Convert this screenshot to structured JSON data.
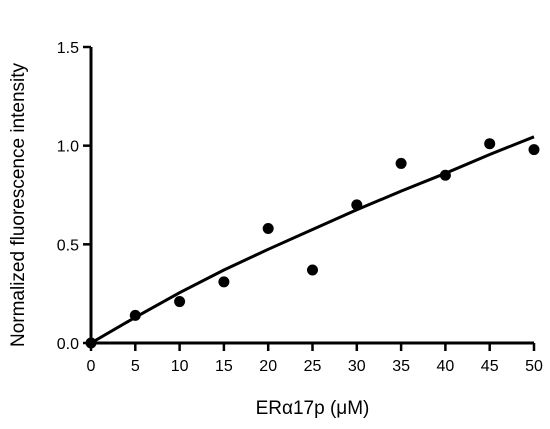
{
  "chart_data": {
    "type": "scatter",
    "xlabel": "ERα17p (μM)",
    "ylabel": "Normalized fluorescence intensity",
    "xlim": [
      0,
      50
    ],
    "ylim": [
      0,
      1.5
    ],
    "x_ticks": [
      0,
      5,
      10,
      15,
      20,
      25,
      30,
      35,
      40,
      45,
      50
    ],
    "x_tick_labels": [
      "0",
      "5",
      "10",
      "15",
      "20",
      "25",
      "30",
      "35",
      "40",
      "45",
      "50"
    ],
    "y_ticks": [
      0,
      0.5,
      1.0,
      1.5
    ],
    "y_tick_labels": [
      "0.0",
      "0.5",
      "1.0",
      "1.5"
    ],
    "grid": false,
    "points": [
      {
        "x": 0,
        "y": 0.0
      },
      {
        "x": 5,
        "y": 0.14
      },
      {
        "x": 10,
        "y": 0.21
      },
      {
        "x": 15,
        "y": 0.31
      },
      {
        "x": 20,
        "y": 0.58
      },
      {
        "x": 25,
        "y": 0.37
      },
      {
        "x": 30,
        "y": 0.7
      },
      {
        "x": 35,
        "y": 0.91
      },
      {
        "x": 40,
        "y": 0.85
      },
      {
        "x": 45,
        "y": 1.01
      },
      {
        "x": 50,
        "y": 0.98
      }
    ],
    "fit_curve": [
      {
        "x": 0,
        "y": 0.0
      },
      {
        "x": 5,
        "y": 0.13
      },
      {
        "x": 10,
        "y": 0.255
      },
      {
        "x": 15,
        "y": 0.37
      },
      {
        "x": 20,
        "y": 0.475
      },
      {
        "x": 25,
        "y": 0.575
      },
      {
        "x": 30,
        "y": 0.675
      },
      {
        "x": 35,
        "y": 0.77
      },
      {
        "x": 40,
        "y": 0.86
      },
      {
        "x": 45,
        "y": 0.955
      },
      {
        "x": 50,
        "y": 1.045
      }
    ]
  }
}
